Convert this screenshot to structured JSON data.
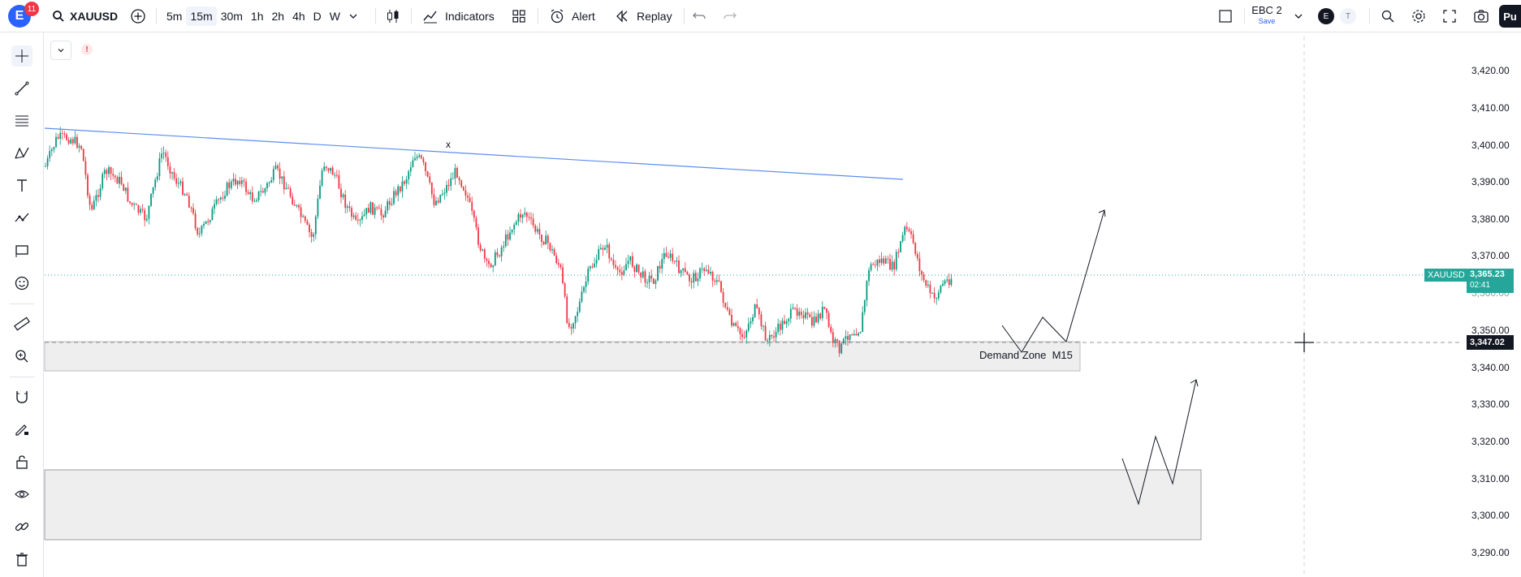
{
  "header": {
    "notifications": "11",
    "symbol": "XAUUSD",
    "timeframes": [
      "5m",
      "15m",
      "30m",
      "1h",
      "2h",
      "4h",
      "D",
      "W"
    ],
    "active_timeframe": "15m",
    "indicators_label": "Indicators",
    "alert_label": "Alert",
    "replay_label": "Replay",
    "layout_name": "EBC 2",
    "save_label": "Save",
    "avatar_e": "E",
    "avatar_t": "T",
    "publish_label": "Pu"
  },
  "chart": {
    "symbol_tag": "XAUUSD",
    "current_price": "3,365.23",
    "countdown": "02:41",
    "crosshair_price": "3,347.02",
    "drawing_marker": "x",
    "zone_label": "Demand Zone  M15",
    "price_axis": [
      "3,420.00",
      "3,410.00",
      "3,400.00",
      "3,390.00",
      "3,380.00",
      "3,370.00",
      "3,360.00",
      "3,350.00",
      "3,340.00",
      "3,330.00",
      "3,320.00",
      "3,310.00",
      "3,300.00",
      "3,290.00"
    ]
  },
  "colors": {
    "up": "#089981",
    "down": "#f23645",
    "trendline": "#5b8def",
    "zone_fill": "#eeeeee",
    "price_tag": "#26a69a"
  },
  "toolbar_icons": [
    "crosshair-icon",
    "trend-line-icon",
    "fib-icon",
    "pattern-icon",
    "text-icon",
    "forecast-icon",
    "rectangle-icon",
    "emoji-icon",
    "ruler-icon",
    "zoom-icon",
    "magnet-icon",
    "pencil-lock-icon",
    "lock-icon",
    "eye-icon",
    "link-icon",
    "trash-icon"
  ]
}
